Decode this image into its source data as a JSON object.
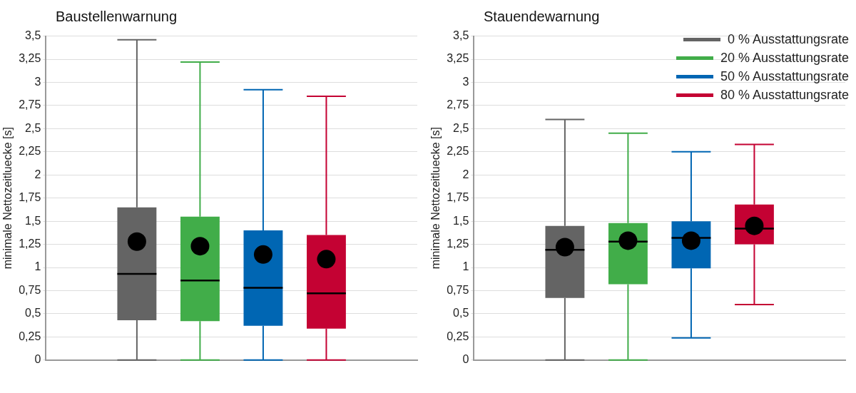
{
  "chart_data": [
    {
      "type": "box",
      "title": "Baustellenwarnung",
      "ylabel": "minimale Nettozeitluecke [s]",
      "categories": [
        null
      ],
      "ylim": [
        0,
        3.5
      ],
      "yticks": [
        0,
        {
          "value": 0.25,
          "label": "0,25"
        },
        {
          "value": 0.5,
          "label": "0,5"
        },
        {
          "value": 0.75,
          "label": "0,75"
        },
        1,
        {
          "value": 1.25,
          "label": "1,25"
        },
        {
          "value": 1.5,
          "label": "1,5"
        },
        {
          "value": 1.75,
          "label": "1,75"
        },
        2,
        {
          "value": 2.25,
          "label": "2,25"
        },
        {
          "value": 2.5,
          "label": "2,5"
        },
        {
          "value": 2.75,
          "label": "2,75"
        },
        3,
        {
          "value": 3.25,
          "label": "3,25"
        },
        {
          "value": 3.5,
          "label": "3,5"
        }
      ],
      "grid": "y",
      "legend": false,
      "series": [
        {
          "color": "#646464",
          "boxes": [
            {
              "low": 0,
              "q1": 0.43,
              "median": 0.93,
              "q3": 1.65,
              "high": 3.46,
              "mean": 1.28
            }
          ]
        },
        {
          "color": "#41ad49",
          "boxes": [
            {
              "low": 0,
              "q1": 0.42,
              "median": 0.86,
              "q3": 1.55,
              "high": 3.22,
              "mean": 1.23
            }
          ]
        },
        {
          "color": "#0066b3",
          "boxes": [
            {
              "low": 0,
              "q1": 0.37,
              "median": 0.78,
              "q3": 1.4,
              "high": 2.92,
              "mean": 1.14
            }
          ]
        },
        {
          "color": "#c40233",
          "boxes": [
            {
              "low": 0,
              "q1": 0.34,
              "median": 0.72,
              "q3": 1.35,
              "high": 2.85,
              "mean": 1.09
            }
          ]
        }
      ]
    },
    {
      "type": "box",
      "title": "Stauendewarnung",
      "ylabel": "minimale Nettozeitluecke [s]",
      "categories": [
        null
      ],
      "ylim": [
        0,
        3.5
      ],
      "yticks": [
        0,
        {
          "value": 0.25,
          "label": "0,25"
        },
        {
          "value": 0.5,
          "label": "0,5"
        },
        {
          "value": 0.75,
          "label": "0,75"
        },
        1,
        {
          "value": 1.25,
          "label": "1,25"
        },
        {
          "value": 1.5,
          "label": "1,5"
        },
        {
          "value": 1.75,
          "label": "1,75"
        },
        2,
        {
          "value": 2.25,
          "label": "2,25"
        },
        {
          "value": 2.5,
          "label": "2,5"
        },
        {
          "value": 2.75,
          "label": "2,75"
        },
        3,
        {
          "value": 3.25,
          "label": "3,25"
        },
        {
          "value": 3.5,
          "label": "3,5"
        }
      ],
      "grid": "y",
      "legend": "top right",
      "series": [
        {
          "name": "0 % Ausstattungsrate",
          "color": "#646464",
          "boxes": [
            {
              "low": 0,
              "q1": 0.67,
              "median": 1.19,
              "q3": 1.45,
              "high": 2.6,
              "mean": 1.22
            }
          ]
        },
        {
          "name": "20 % Ausstattungsrate",
          "color": "#41ad49",
          "boxes": [
            {
              "low": 0,
              "q1": 0.82,
              "median": 1.28,
              "q3": 1.48,
              "high": 2.45,
              "mean": 1.29
            }
          ]
        },
        {
          "name": "50 % Ausstattungsrate",
          "color": "#0066b3",
          "boxes": [
            {
              "low": 0.24,
              "q1": 0.99,
              "median": 1.32,
              "q3": 1.5,
              "high": 2.25,
              "mean": 1.29
            }
          ]
        },
        {
          "name": "80 % Ausstattungsrate",
          "color": "#c40233",
          "boxes": [
            {
              "low": 0.6,
              "q1": 1.25,
              "median": 1.42,
              "q3": 1.68,
              "high": 2.33,
              "mean": 1.45
            }
          ]
        }
      ]
    }
  ]
}
